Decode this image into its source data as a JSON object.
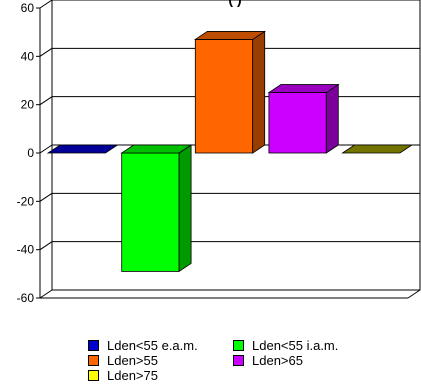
{
  "chart_data": {
    "type": "bar",
    "title": "(                         )",
    "ylim": [
      -60,
      60
    ],
    "yticks": [
      60,
      40,
      20,
      0,
      -20,
      -40,
      -60
    ],
    "grid": true,
    "legend_position": "bottom",
    "series": [
      {
        "name": "Lden<55 e.a.m.",
        "value": 0,
        "color": "#0000cc"
      },
      {
        "name": "Lden<55 i.a.m.",
        "value": -49,
        "color": "#00ff00"
      },
      {
        "name": "Lden>55",
        "value": 47,
        "color": "#ff6600"
      },
      {
        "name": "Lden>65",
        "value": 25,
        "color": "#cc00ff"
      },
      {
        "name": "Lden>75",
        "value": 0,
        "color": "#999900"
      }
    ],
    "legend_colors": [
      "#0000cc",
      "#00ff00",
      "#ff6600",
      "#cc00ff",
      "#ffff00"
    ]
  }
}
